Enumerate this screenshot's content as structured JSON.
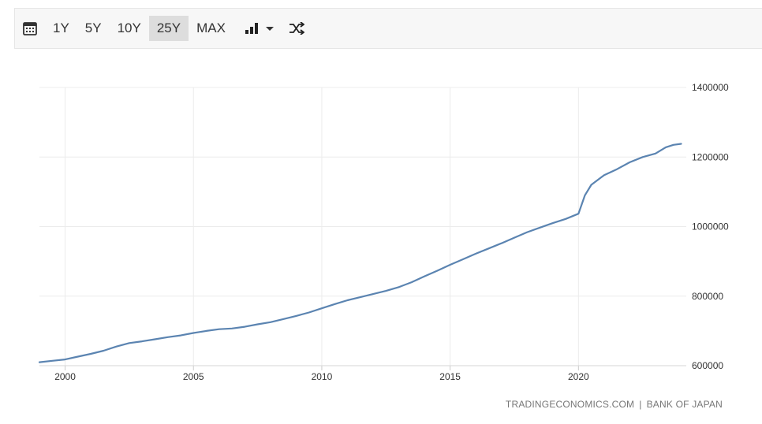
{
  "toolbar": {
    "ranges": [
      "1Y",
      "5Y",
      "10Y",
      "25Y",
      "MAX"
    ],
    "active_range": "25Y",
    "icons": [
      "calendar-icon",
      "bar-chart-icon",
      "caret-down-icon",
      "shuffle-icon"
    ]
  },
  "colors": {
    "line": "#5b84b1",
    "grid": "#ececec",
    "active_button": "#dddddd"
  },
  "source": {
    "left": "TRADINGECONOMICS.COM",
    "separator": "|",
    "right": "BANK OF JAPAN"
  },
  "chart_data": {
    "type": "line",
    "xlim": [
      1999.0,
      2024.2
    ],
    "ylim": [
      600000,
      1400000
    ],
    "x_ticks": [
      2000,
      2005,
      2010,
      2015,
      2020
    ],
    "y_ticks": [
      600000,
      800000,
      1000000,
      1200000,
      1400000
    ],
    "grid": true,
    "y_axis_position": "right",
    "series": [
      {
        "values": [
          [
            1999.0,
            610000
          ],
          [
            1999.5,
            614000
          ],
          [
            2000.0,
            618000
          ],
          [
            2000.5,
            626000
          ],
          [
            2001.0,
            634000
          ],
          [
            2001.5,
            643000
          ],
          [
            2002.0,
            655000
          ],
          [
            2002.5,
            665000
          ],
          [
            2003.0,
            670000
          ],
          [
            2003.5,
            676000
          ],
          [
            2004.0,
            682000
          ],
          [
            2004.5,
            687000
          ],
          [
            2005.0,
            694000
          ],
          [
            2005.5,
            700000
          ],
          [
            2006.0,
            705000
          ],
          [
            2006.5,
            707000
          ],
          [
            2007.0,
            712000
          ],
          [
            2007.5,
            719000
          ],
          [
            2008.0,
            725000
          ],
          [
            2008.5,
            734000
          ],
          [
            2009.0,
            743000
          ],
          [
            2009.5,
            753000
          ],
          [
            2010.0,
            765000
          ],
          [
            2010.5,
            777000
          ],
          [
            2011.0,
            788000
          ],
          [
            2011.5,
            797000
          ],
          [
            2012.0,
            806000
          ],
          [
            2012.5,
            815000
          ],
          [
            2013.0,
            826000
          ],
          [
            2013.5,
            840000
          ],
          [
            2014.0,
            857000
          ],
          [
            2014.5,
            873000
          ],
          [
            2015.0,
            890000
          ],
          [
            2015.5,
            906000
          ],
          [
            2016.0,
            922000
          ],
          [
            2016.5,
            937000
          ],
          [
            2017.0,
            952000
          ],
          [
            2017.5,
            968000
          ],
          [
            2018.0,
            984000
          ],
          [
            2018.5,
            997000
          ],
          [
            2019.0,
            1010000
          ],
          [
            2019.5,
            1022000
          ],
          [
            2020.0,
            1037000
          ],
          [
            2020.25,
            1090000
          ],
          [
            2020.5,
            1120000
          ],
          [
            2021.0,
            1148000
          ],
          [
            2021.5,
            1165000
          ],
          [
            2022.0,
            1185000
          ],
          [
            2022.5,
            1200000
          ],
          [
            2023.0,
            1210000
          ],
          [
            2023.4,
            1228000
          ],
          [
            2023.7,
            1235000
          ],
          [
            2024.0,
            1238000
          ]
        ]
      }
    ]
  }
}
